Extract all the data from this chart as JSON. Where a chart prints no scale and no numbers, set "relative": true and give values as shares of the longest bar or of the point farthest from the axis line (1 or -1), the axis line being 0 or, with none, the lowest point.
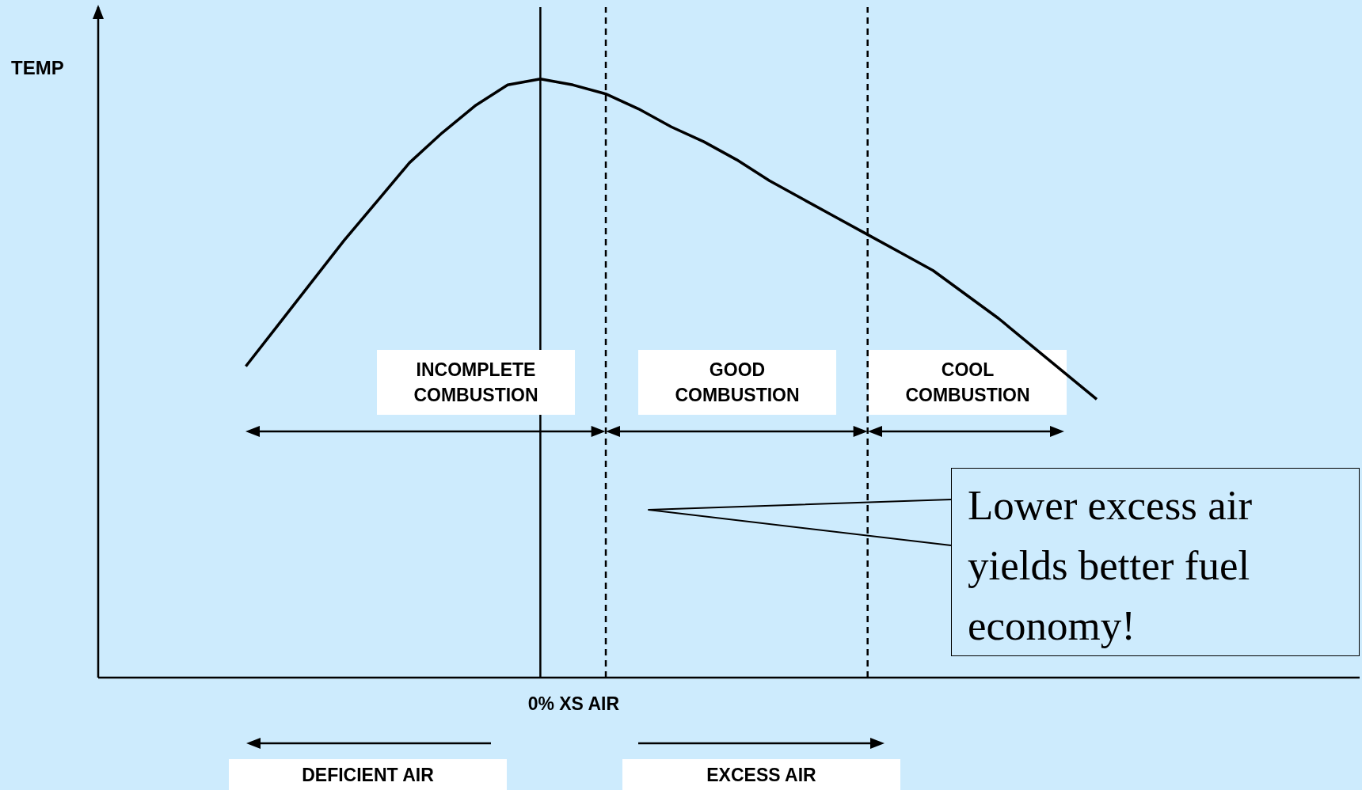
{
  "chart_data": {
    "type": "line",
    "relative": true,
    "categories": [
      null,
      null,
      null,
      null,
      null,
      null,
      null,
      null,
      null,
      null,
      null,
      null,
      null,
      null,
      null,
      null,
      null,
      null,
      null,
      null,
      null,
      null,
      null,
      null,
      null,
      null,
      null
    ],
    "series": [
      {
        "color": "#000000",
        "values": [
          0.52,
          0.59,
          0.66,
          0.73,
          0.795,
          0.86,
          0.91,
          0.955,
          0.99,
          1,
          0.99,
          0.975,
          0.95,
          0.92,
          0.895,
          0.865,
          0.83,
          0.8,
          0.77,
          0.74,
          0.71,
          0.68,
          0.64,
          0.6,
          0.555,
          0.51,
          0.465
        ]
      }
    ],
    "ref_lines": [
      {
        "axis": "x",
        "label": "0% XS AIR",
        "line_style": "solid",
        "color": "#000000"
      },
      {
        "axis": "x",
        "line_style": "dashed",
        "color": "#000000"
      },
      {
        "axis": "x",
        "line_style": "dashed",
        "color": "#000000"
      }
    ],
    "annotations": [
      "INCOMPLETE COMBUSTION",
      "GOOD COMBUSTION",
      "COOL COMBUSTION",
      "DEFICIENT AIR",
      "EXCESS AIR",
      "Lower excess air yields better fuel economy!",
      "TEMP"
    ]
  }
}
